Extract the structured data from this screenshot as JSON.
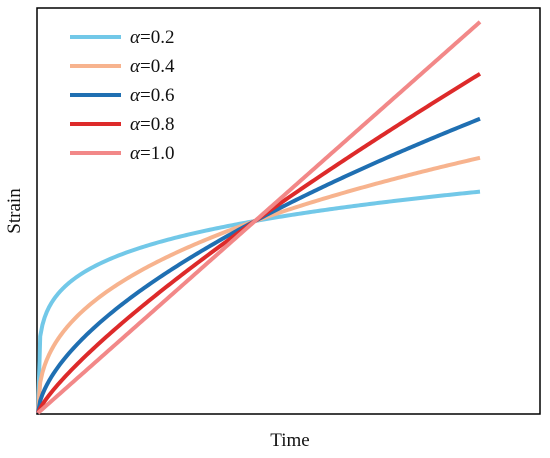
{
  "chart_data": {
    "type": "line",
    "title": "",
    "xlabel": "Time",
    "ylabel": "Strain",
    "xlim": [
      0,
      1
    ],
    "ylim": [
      0,
      1
    ],
    "grid": false,
    "x_ticks": "none",
    "y_ticks": "none",
    "legend_placement": "top-left",
    "legend_symbol": "α",
    "model": "y = t^alpha",
    "series": [
      {
        "name": "α=0.2",
        "alpha_value": "=0.2",
        "alpha": 0.2,
        "color": "#72c8e8"
      },
      {
        "name": "α=0.4",
        "alpha_value": "=0.4",
        "alpha": 0.4,
        "color": "#f7b38e"
      },
      {
        "name": "α=0.6",
        "alpha_value": "=0.6",
        "alpha": 0.6,
        "color": "#1f6fb2"
      },
      {
        "name": "α=0.8",
        "alpha_value": "=0.8",
        "alpha": 0.8,
        "color": "#dd2a2a"
      },
      {
        "name": "α=1.0",
        "alpha_value": "=1.0",
        "alpha": 1.0,
        "color": "#f28888"
      }
    ]
  }
}
